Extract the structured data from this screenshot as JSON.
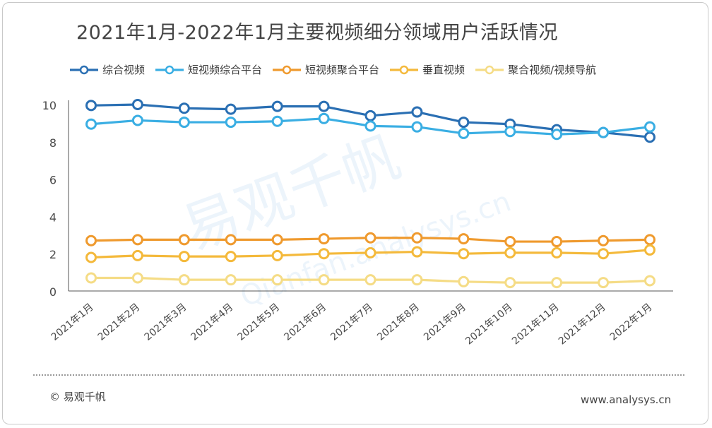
{
  "title": "2021年1月-2022年1月主要视频细分领域用户活跃情况",
  "footer": {
    "copyright": "© 易观千帆",
    "site": "www.analysys.cn"
  },
  "watermark": {
    "main": "易观千帆",
    "sub": "Qianfan.analysys.cn"
  },
  "chart_data": {
    "type": "line",
    "title": "2021年1月-2022年1月主要视频细分领域用户活跃情况",
    "xlabel": "",
    "ylabel": "",
    "ylim": [
      0,
      10
    ],
    "yticks": [
      0,
      2,
      4,
      6,
      8,
      10
    ],
    "grid": false,
    "legend_position": "top",
    "categories": [
      "2021年1月",
      "2021年2月",
      "2021年3月",
      "2021年4月",
      "2021年5月",
      "2021年6月",
      "2021年7月",
      "2021年8月",
      "2021年9月",
      "2021年10月",
      "2021年11月",
      "2021年12月",
      "2022年1月"
    ],
    "series": [
      {
        "name": "综合视频",
        "color": "#2a6fb3",
        "values": [
          9.95,
          10.0,
          9.8,
          9.75,
          9.9,
          9.9,
          9.4,
          9.6,
          9.05,
          8.95,
          8.65,
          8.5,
          8.25
        ]
      },
      {
        "name": "短视频综合平台",
        "color": "#3aaee3",
        "values": [
          8.95,
          9.15,
          9.05,
          9.05,
          9.1,
          9.25,
          8.85,
          8.8,
          8.45,
          8.55,
          8.4,
          8.5,
          8.8
        ]
      },
      {
        "name": "短视频聚合平台",
        "color": "#ef9a2e",
        "values": [
          2.7,
          2.75,
          2.75,
          2.75,
          2.75,
          2.8,
          2.85,
          2.85,
          2.8,
          2.65,
          2.65,
          2.7,
          2.75
        ]
      },
      {
        "name": "垂直视频",
        "color": "#f4b93b",
        "values": [
          1.8,
          1.9,
          1.85,
          1.85,
          1.9,
          2.0,
          2.05,
          2.1,
          2.0,
          2.05,
          2.05,
          2.0,
          2.2
        ]
      },
      {
        "name": "聚合视频/视频导航",
        "color": "#f5dc86",
        "values": [
          0.7,
          0.7,
          0.6,
          0.6,
          0.6,
          0.6,
          0.6,
          0.6,
          0.5,
          0.45,
          0.45,
          0.45,
          0.55
        ]
      }
    ]
  }
}
